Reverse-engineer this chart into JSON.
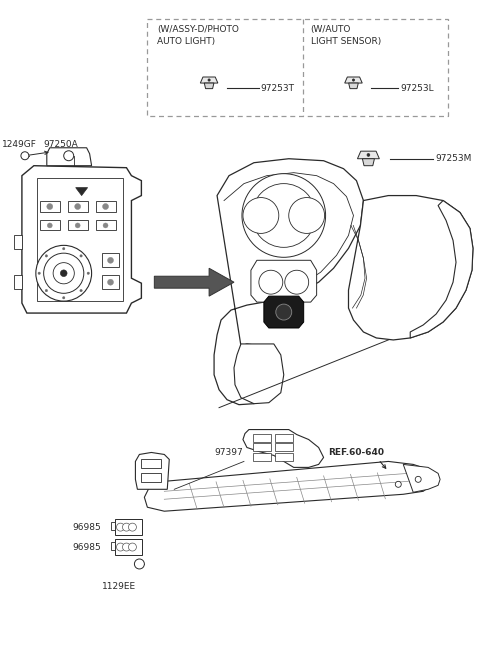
{
  "background_color": "#ffffff",
  "line_color": "#2a2a2a",
  "gray_light": "#e0e0e0",
  "gray_mid": "#b0b0b0",
  "gray_dark": "#888888",
  "dashed_color": "#999999",
  "labels": {
    "part_97253T": "97253T",
    "part_97253L": "97253L",
    "part_97253M": "97253M",
    "part_97250A": "97250A",
    "part_1249GF": "1249GF",
    "part_97397": "97397",
    "part_96985a": "96985",
    "part_96985b": "96985",
    "part_1129EE": "1129EE",
    "ref_label": "REF.60-640",
    "box_left_line1": "(W/ASSY-D/PHOTO",
    "box_left_line2": "AUTO LIGHT)",
    "box_right_line1": "(W/AUTO",
    "box_right_line2": "LIGHT SENSOR)"
  }
}
